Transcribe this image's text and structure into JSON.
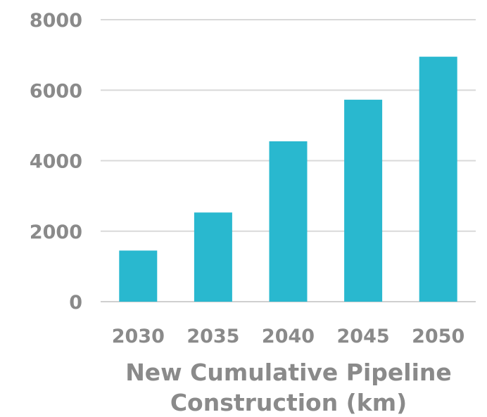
{
  "chart_data": {
    "type": "bar",
    "categories": [
      "2030",
      "2035",
      "2040",
      "2045",
      "2050"
    ],
    "values": [
      1450,
      2530,
      4550,
      5730,
      6950
    ],
    "title": "",
    "xlabel_lines": [
      "New Cumulative Pipeline",
      "Construction (km)"
    ],
    "ylabel": "",
    "ylim": [
      0,
      8000
    ],
    "yticks": [
      "0",
      "2000",
      "4000",
      "6000",
      "8000"
    ],
    "grid": true,
    "legend": "none",
    "bar_color": "#29b8cf"
  }
}
